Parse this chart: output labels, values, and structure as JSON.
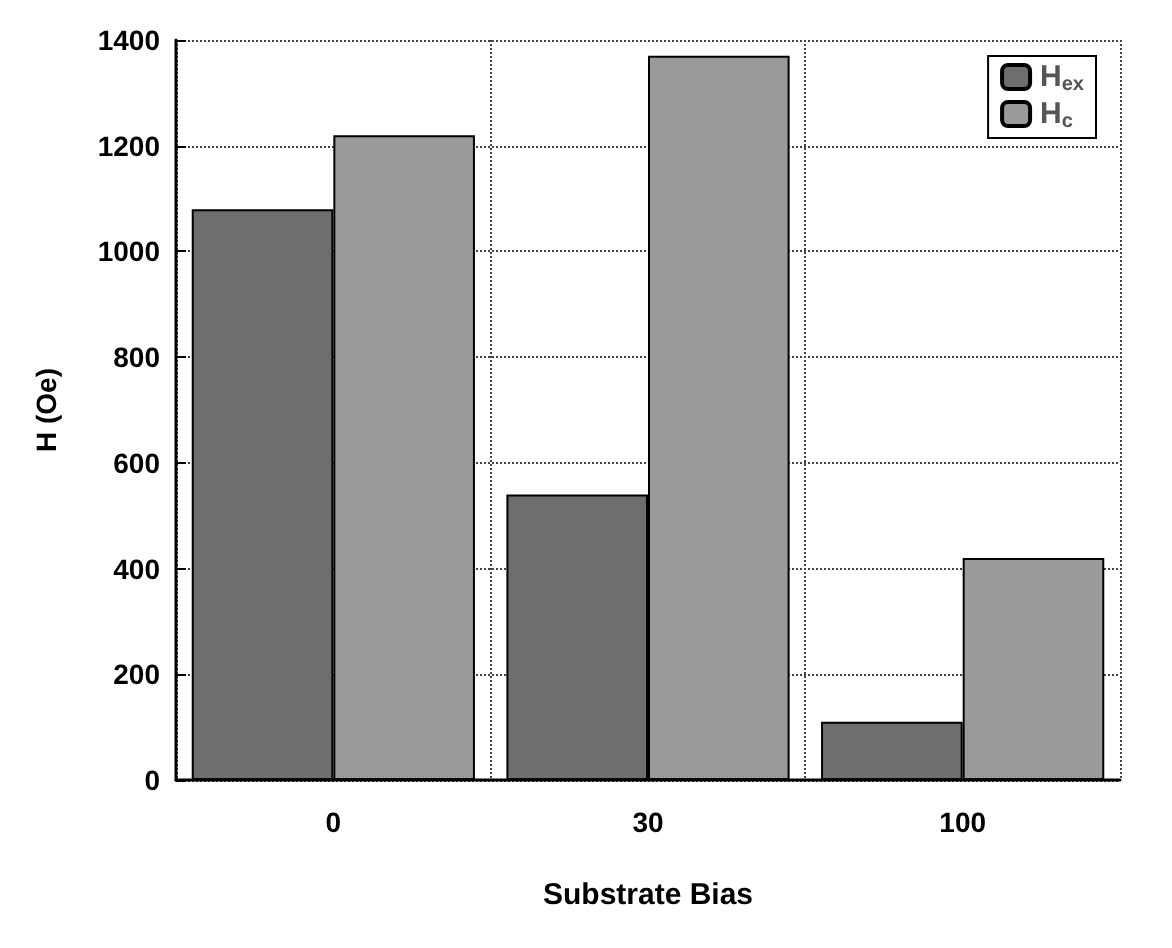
{
  "chart_data": {
    "type": "bar",
    "xlabel": "Substrate Bias",
    "ylabel": "H (Oe)",
    "categories": [
      "0",
      "30",
      "100"
    ],
    "series": [
      {
        "name": "H$_{ex}$",
        "color": "#6e6e6e",
        "values": [
          1080,
          540,
          110
        ]
      },
      {
        "name": "H$_{c}$",
        "color": "#9a9a9a",
        "values": [
          1220,
          1370,
          420
        ]
      }
    ],
    "ylim": [
      0,
      1400
    ],
    "yticks": [
      0,
      200,
      400,
      600,
      800,
      1000,
      1200,
      1400
    ],
    "grid": true,
    "legend": "top right"
  }
}
